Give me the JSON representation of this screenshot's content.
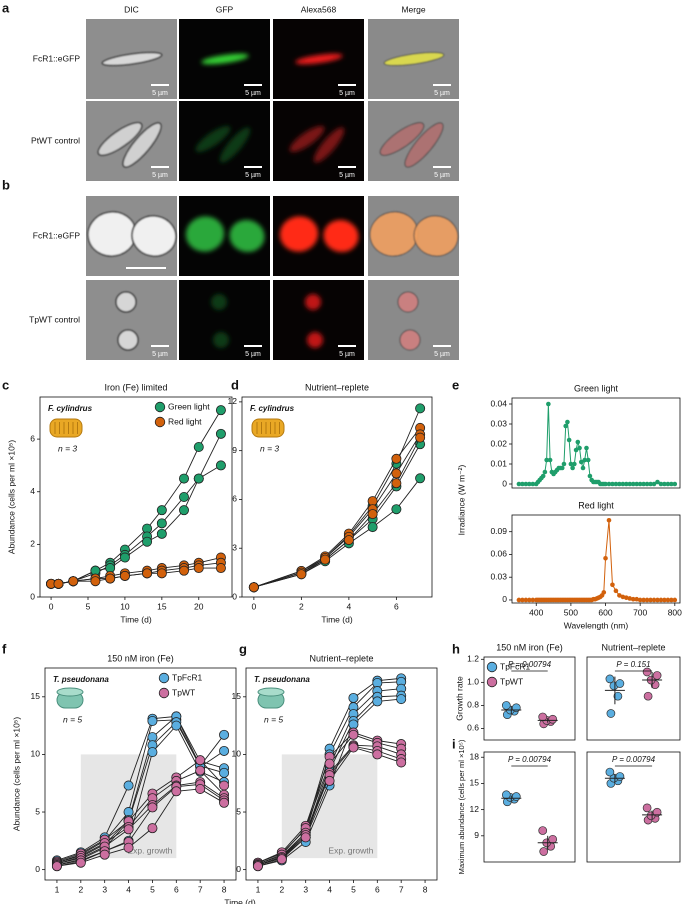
{
  "panel_a": {
    "letter": "a",
    "columns": [
      "DIC",
      "GFP",
      "Alexa568",
      "Merge"
    ],
    "rows": [
      {
        "label": "FcR1::eGFP",
        "scale_bars": [
          "5 µm",
          "5 µm",
          "5 µm",
          "5 µm"
        ]
      },
      {
        "label": "PtWT control",
        "scale_bars": [
          "5 µm",
          "5 µm",
          "5 µm",
          "5 µm"
        ]
      }
    ]
  },
  "panel_b": {
    "letter": "b",
    "rows": [
      {
        "label": "FcR1::eGFP",
        "scale_bars": []
      },
      {
        "label": "TpWT control",
        "scale_bars": [
          "5 µm",
          "5 µm",
          "5 µm",
          "5 µm"
        ]
      }
    ]
  },
  "chart_data": [
    {
      "type": "line",
      "panel": "c",
      "title": "Iron (Fe) limited",
      "xlabel": "Time (d)",
      "ylabel": "Abundance (cells per ml ×10⁵)",
      "species": "F. cylindrus",
      "n_label": "n = 3",
      "legend": "top-right",
      "x": [
        0,
        1,
        3,
        6,
        8,
        10,
        13,
        15,
        18,
        20,
        23
      ],
      "xlim": [
        -1.5,
        24.5
      ],
      "xticks": [
        0,
        5,
        10,
        15,
        20
      ],
      "ylim": [
        0,
        7.6
      ],
      "yticks": [
        0,
        2,
        4,
        6
      ],
      "series": [
        {
          "name": "Green light",
          "color": "#1f9e6b",
          "line_color": "#222",
          "replicates": [
            [
              0.5,
              0.5,
              0.6,
              1.0,
              1.3,
              1.8,
              2.6,
              3.3,
              4.5,
              5.7,
              7.1
            ],
            [
              0.5,
              0.5,
              0.6,
              0.9,
              1.2,
              1.6,
              2.3,
              2.8,
              3.8,
              4.5,
              5.0
            ],
            [
              0.5,
              0.5,
              0.6,
              1.0,
              1.1,
              1.5,
              2.1,
              2.4,
              3.3,
              4.5,
              6.2
            ]
          ]
        },
        {
          "name": "Red light",
          "color": "#d2610c",
          "line_color": "#222",
          "replicates": [
            [
              0.5,
              0.5,
              0.6,
              0.7,
              0.8,
              0.9,
              1.0,
              1.1,
              1.2,
              1.3,
              1.5
            ],
            [
              0.5,
              0.5,
              0.6,
              0.7,
              0.7,
              0.8,
              0.9,
              1.0,
              1.1,
              1.2,
              1.3
            ],
            [
              0.5,
              0.5,
              0.6,
              0.6,
              0.7,
              0.8,
              0.9,
              0.9,
              1.0,
              1.1,
              1.1
            ]
          ]
        }
      ]
    },
    {
      "type": "line",
      "panel": "d",
      "title": "Nutrient–replete",
      "xlabel": "Time (d)",
      "species": "F. cylindrus",
      "n_label": "n = 3",
      "x": [
        0,
        2,
        3,
        4,
        5,
        6,
        7
      ],
      "xlim": [
        -0.5,
        7.5
      ],
      "xticks": [
        0,
        2,
        4,
        6
      ],
      "ylim": [
        0,
        12.3
      ],
      "yticks": [
        0,
        3,
        6,
        9,
        12
      ],
      "series": [
        {
          "color": "#1f9e6b",
          "line_color": "#222",
          "replicates": [
            [
              0.6,
              1.6,
              2.4,
              3.8,
              5.6,
              8.2,
              11.6
            ],
            [
              0.6,
              1.5,
              2.3,
              3.5,
              4.8,
              6.8,
              9.4
            ],
            [
              0.6,
              1.4,
              2.2,
              3.3,
              4.3,
              5.4,
              7.3
            ]
          ]
        },
        {
          "color": "#d2610c",
          "line_color": "#222",
          "replicates": [
            [
              0.6,
              1.6,
              2.5,
              3.9,
              5.9,
              8.5,
              10.4
            ],
            [
              0.6,
              1.5,
              2.4,
              3.7,
              5.4,
              7.6,
              10.0
            ],
            [
              0.6,
              1.4,
              2.3,
              3.5,
              5.1,
              7.0,
              9.8
            ]
          ]
        }
      ]
    },
    {
      "type": "line",
      "panel": "e",
      "title": "Green light",
      "ylabel": "Irradiance (W m⁻²)",
      "x": [
        350,
        360,
        370,
        380,
        390,
        400,
        405,
        410,
        415,
        420,
        425,
        430,
        435,
        440,
        445,
        450,
        455,
        460,
        465,
        470,
        475,
        480,
        485,
        490,
        495,
        500,
        505,
        510,
        515,
        520,
        525,
        530,
        535,
        540,
        545,
        550,
        555,
        560,
        565,
        570,
        575,
        580,
        585,
        590,
        595,
        600,
        610,
        620,
        630,
        640,
        650,
        660,
        670,
        680,
        690,
        700,
        710,
        720,
        730,
        740,
        750,
        760,
        770,
        780,
        790,
        800
      ],
      "xlim": [
        330,
        815
      ],
      "ylim": [
        -0.002,
        0.043
      ],
      "yticks": [
        0,
        0.01,
        0.02,
        0.03,
        0.04
      ],
      "series": [
        {
          "color": "#1f9e6b",
          "values": [
            0,
            0,
            0,
            0,
            0,
            0,
            0.001,
            0.002,
            0.003,
            0.004,
            0.006,
            0.012,
            0.04,
            0.012,
            0.006,
            0.005,
            0.006,
            0.007,
            0.008,
            0.008,
            0.008,
            0.01,
            0.029,
            0.031,
            0.022,
            0.01,
            0.008,
            0.01,
            0.017,
            0.021,
            0.018,
            0.011,
            0.008,
            0.012,
            0.018,
            0.012,
            0.004,
            0.002,
            0.001,
            0.001,
            0.001,
            0.001,
            0,
            0,
            0,
            0,
            0,
            0,
            0,
            0,
            0,
            0,
            0,
            0,
            0,
            0,
            0,
            0,
            0,
            0,
            0.001,
            0,
            0,
            0,
            0,
            0
          ]
        }
      ]
    },
    {
      "type": "line",
      "title": "Red light",
      "xlabel": "Wavelength (nm)",
      "x": [
        350,
        360,
        370,
        380,
        390,
        400,
        405,
        410,
        415,
        420,
        425,
        430,
        435,
        440,
        445,
        450,
        455,
        460,
        465,
        470,
        475,
        480,
        485,
        490,
        495,
        500,
        505,
        510,
        515,
        520,
        525,
        530,
        535,
        540,
        545,
        550,
        555,
        560,
        565,
        570,
        575,
        580,
        585,
        590,
        595,
        600,
        610,
        620,
        630,
        640,
        650,
        660,
        670,
        680,
        690,
        700,
        710,
        720,
        730,
        740,
        750,
        760,
        770,
        780,
        790,
        800
      ],
      "xlim": [
        330,
        815
      ],
      "xticks": [
        400,
        500,
        600,
        700,
        800
      ],
      "ylim": [
        -0.004,
        0.112
      ],
      "yticks": [
        0,
        0.03,
        0.06,
        0.09
      ],
      "series": [
        {
          "color": "#d2610c",
          "values": [
            0,
            0,
            0,
            0,
            0,
            0,
            0,
            0,
            0,
            0,
            0,
            0,
            0,
            0,
            0,
            0,
            0,
            0,
            0,
            0,
            0,
            0,
            0,
            0,
            0,
            0,
            0,
            0,
            0,
            0,
            0,
            0,
            0,
            0,
            0,
            0,
            0,
            0,
            0.001,
            0.001,
            0.002,
            0.003,
            0.004,
            0.006,
            0.01,
            0.055,
            0.105,
            0.02,
            0.012,
            0.006,
            0.004,
            0.003,
            0.002,
            0.001,
            0.001,
            0,
            0,
            0,
            0,
            0,
            0,
            0,
            0,
            0,
            0,
            0
          ]
        }
      ]
    },
    {
      "type": "line",
      "panel": "f",
      "title": "150 nM iron (Fe)",
      "xlabel": "Time (d)",
      "ylabel": "Abundance (cells per ml ×10⁵)",
      "species": "T. pseudonana",
      "n_label": "n = 5",
      "legend": "top-right",
      "shade": {
        "x": [
          2,
          6
        ],
        "y": [
          1,
          10
        ],
        "label": "Exp. growth"
      },
      "x": [
        1,
        2,
        3,
        4,
        5,
        6,
        7,
        8
      ],
      "xlim": [
        0.5,
        8.5
      ],
      "xticks": [
        1,
        2,
        3,
        4,
        5,
        6,
        7,
        8
      ],
      "ylim": [
        -0.9,
        17.5
      ],
      "yticks": [
        0,
        5,
        10,
        15
      ],
      "series": [
        {
          "name": "TpFcR1",
          "color": "#5aaee0",
          "line_color": "#222",
          "replicates": [
            [
              0.8,
              1.5,
              2.8,
              7.3,
              13.1,
              13.3,
              9.0,
              11.7
            ],
            [
              0.6,
              1.3,
              2.5,
              5.0,
              12.9,
              13.0,
              8.9,
              10.3
            ],
            [
              0.5,
              1.1,
              2.2,
              4.3,
              11.5,
              13.3,
              9.4,
              8.8
            ],
            [
              0.4,
              0.9,
              1.9,
              4.2,
              10.8,
              12.8,
              9.0,
              8.4
            ],
            [
              0.3,
              0.7,
              1.6,
              2.5,
              10.2,
              12.5,
              8.5,
              7.6
            ]
          ]
        },
        {
          "name": "TpWT",
          "color": "#cc6fa0",
          "line_color": "#222",
          "replicates": [
            [
              0.7,
              1.4,
              2.6,
              4.2,
              6.6,
              8.0,
              9.5,
              7.3
            ],
            [
              0.6,
              1.2,
              2.3,
              3.7,
              6.2,
              7.7,
              8.6,
              6.5
            ],
            [
              0.5,
              1.0,
              2.0,
              3.5,
              5.6,
              7.3,
              7.6,
              6.2
            ],
            [
              0.4,
              0.8,
              1.6,
              2.4,
              5.4,
              7.2,
              7.4,
              6.0
            ],
            [
              0.3,
              0.6,
              1.3,
              1.9,
              3.6,
              6.8,
              7.0,
              5.8
            ]
          ]
        }
      ]
    },
    {
      "type": "line",
      "panel": "g",
      "title": "Nutrient–replete",
      "species": "T. pseudonana",
      "n_label": "n = 5",
      "shade": {
        "x": [
          2,
          6
        ],
        "y": [
          1,
          10
        ],
        "label": "Exp. growth"
      },
      "x": [
        1,
        2,
        3,
        4,
        5,
        6,
        7
      ],
      "xlim": [
        0.5,
        8.5
      ],
      "xticks": [
        1,
        2,
        3,
        4,
        5,
        6,
        7,
        8
      ],
      "ylim": [
        -0.9,
        17.5
      ],
      "yticks": [
        0,
        5,
        10,
        15
      ],
      "series": [
        {
          "color": "#5aaee0",
          "line_color": "#222",
          "replicates": [
            [
              0.6,
              1.4,
              3.5,
              10.5,
              14.9,
              16.4,
              16.6
            ],
            [
              0.5,
              1.2,
              3.2,
              10.0,
              14.1,
              16.2,
              16.3
            ],
            [
              0.4,
              1.1,
              3.0,
              9.0,
              13.5,
              15.5,
              15.7
            ],
            [
              0.4,
              1.0,
              2.8,
              8.6,
              12.9,
              15.0,
              15.1
            ],
            [
              0.3,
              0.8,
              2.4,
              7.3,
              12.6,
              14.6,
              14.8
            ]
          ]
        },
        {
          "color": "#cc6fa0",
          "line_color": "#222",
          "replicates": [
            [
              0.6,
              1.5,
              3.8,
              9.8,
              11.9,
              11.2,
              10.9
            ],
            [
              0.5,
              1.3,
              3.6,
              9.2,
              11.7,
              11.0,
              10.5
            ],
            [
              0.4,
              1.1,
              3.2,
              8.4,
              10.8,
              10.7,
              10.0
            ],
            [
              0.4,
              1.0,
              3.0,
              8.2,
              10.7,
              10.3,
              9.6
            ],
            [
              0.3,
              0.9,
              2.8,
              7.7,
              10.6,
              10.0,
              9.3
            ]
          ]
        }
      ]
    },
    {
      "type": "strip",
      "panel": "h",
      "title": "150 nM iron (Fe)",
      "ylabel": "Growth rate",
      "legend": "top-left",
      "p_value": "P = 0.00794",
      "ylim": [
        0.5,
        1.22
      ],
      "yticks": [
        0.6,
        0.8,
        {
          "value": 1,
          "label": "1.0"
        },
        1.2
      ],
      "series": [
        {
          "name": "TpFcR1",
          "color": "#5aaee0",
          "values": [
            0.72,
            0.75,
            0.76,
            0.78,
            0.8
          ],
          "mean": 0.76,
          "error": 0.03
        },
        {
          "name": "TpWT",
          "color": "#cc6fa0",
          "values": [
            0.64,
            0.66,
            0.67,
            0.68,
            0.7
          ],
          "mean": 0.67,
          "error": 0.02
        }
      ]
    },
    {
      "type": "strip",
      "title": "Nutrient–replete",
      "p_value": "P = 0.151",
      "ylim": [
        0.5,
        1.22
      ],
      "series": [
        {
          "color": "#5aaee0",
          "values": [
            0.73,
            0.88,
            0.97,
            0.99,
            1.03
          ],
          "mean": 0.93,
          "error": 0.12
        },
        {
          "color": "#cc6fa0",
          "values": [
            0.88,
            0.98,
            1.02,
            1.06,
            1.09
          ],
          "mean": 1.02,
          "error": 0.07
        }
      ]
    },
    {
      "type": "strip",
      "panel": "i",
      "ylabel": "Maximum abundance (cells per ml ×10⁵)",
      "p_value": "P = 0.00794",
      "ylim": [
        6,
        18.6
      ],
      "yticks": [
        9,
        12,
        15,
        18
      ],
      "series": [
        {
          "color": "#5aaee0",
          "values": [
            12.9,
            13.2,
            13.4,
            13.5,
            13.7
          ],
          "mean": 13.3,
          "error": 0.3
        },
        {
          "color": "#cc6fa0",
          "values": [
            7.2,
            7.8,
            8.2,
            8.6,
            9.6
          ],
          "mean": 8.2,
          "error": 0.8
        }
      ]
    },
    {
      "type": "strip",
      "p_value": "P = 0.00794",
      "ylim": [
        6,
        18.6
      ],
      "series": [
        {
          "color": "#5aaee0",
          "values": [
            15.0,
            15.3,
            15.6,
            15.8,
            16.3
          ],
          "mean": 15.6,
          "error": 0.5
        },
        {
          "color": "#cc6fa0",
          "values": [
            10.8,
            11.0,
            11.3,
            11.7,
            12.2
          ],
          "mean": 11.4,
          "error": 0.5
        }
      ]
    }
  ]
}
